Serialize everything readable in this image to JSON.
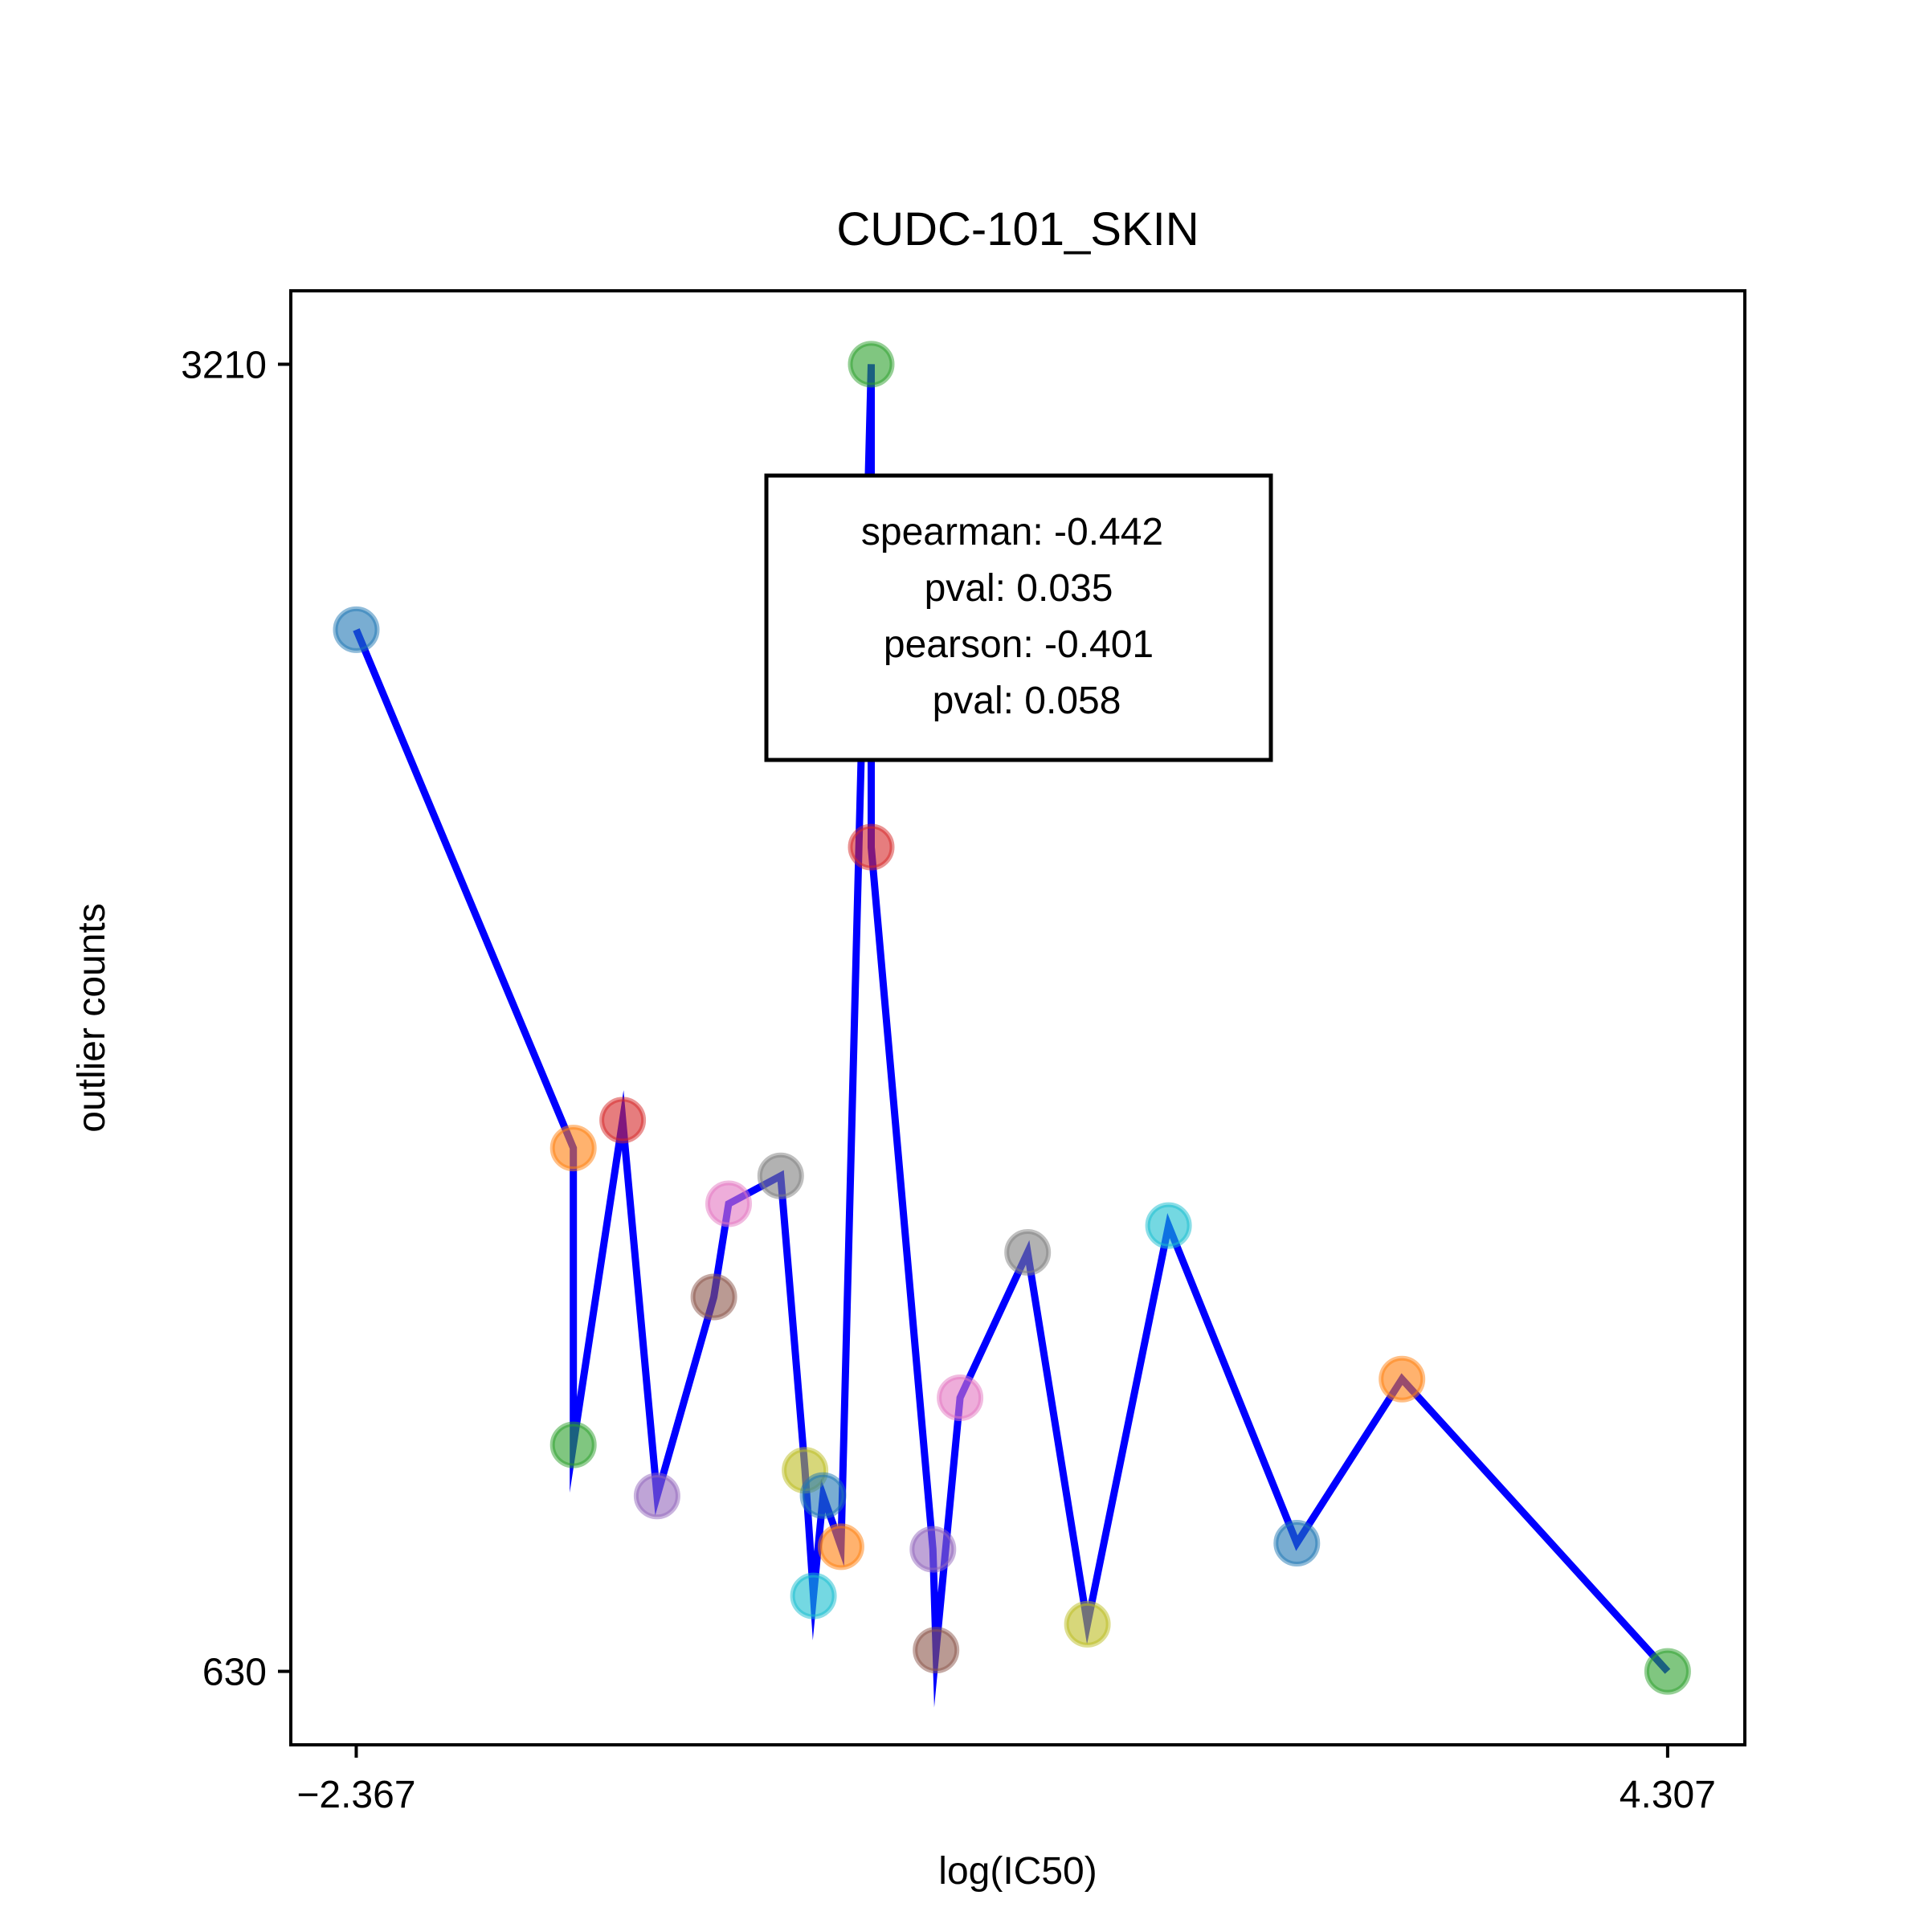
{
  "chart_data": {
    "type": "scatter",
    "title": "CUDC-101_SKIN",
    "xlabel": "log(IC50)",
    "ylabel": "outlier counts",
    "xlim": [
      -2.7,
      4.7
    ],
    "ylim": [
      485,
      3355
    ],
    "xticks": [
      -2.367,
      4.307
    ],
    "xtick_labels": [
      "−2.367",
      "4.307"
    ],
    "yticks": [
      630,
      3210
    ],
    "ytick_labels": [
      "630",
      "3210"
    ],
    "grid": false,
    "line_color": "#0000ff",
    "points": [
      {
        "x": -2.367,
        "y": 2686,
        "color": "#1f77b4"
      },
      {
        "x": -1.262,
        "y": 1663,
        "color": "#ff7f0e"
      },
      {
        "x": -1.262,
        "y": 1077,
        "color": "#2ca02c"
      },
      {
        "x": -1.011,
        "y": 1718,
        "color": "#d62728"
      },
      {
        "x": -0.836,
        "y": 976,
        "color": "#9467bd"
      },
      {
        "x": -0.547,
        "y": 1369,
        "color": "#8c564b"
      },
      {
        "x": -0.472,
        "y": 1553,
        "color": "#e377c2"
      },
      {
        "x": -0.207,
        "y": 1608,
        "color": "#7f7f7f"
      },
      {
        "x": -0.083,
        "y": 1027,
        "color": "#bcbd22"
      },
      {
        "x": -0.04,
        "y": 779,
        "color": "#17becf"
      },
      {
        "x": 0.009,
        "y": 977,
        "color": "#1f77b4"
      },
      {
        "x": 0.1,
        "y": 876,
        "color": "#ff7f0e"
      },
      {
        "x": 0.254,
        "y": 3210,
        "color": "#2ca02c"
      },
      {
        "x": 0.254,
        "y": 2257,
        "color": "#d62728"
      },
      {
        "x": 0.568,
        "y": 871,
        "color": "#9467bd"
      },
      {
        "x": 0.584,
        "y": 672,
        "color": "#8c564b"
      },
      {
        "x": 0.706,
        "y": 1170,
        "color": "#e377c2"
      },
      {
        "x": 1.05,
        "y": 1457,
        "color": "#7f7f7f"
      },
      {
        "x": 1.354,
        "y": 723,
        "color": "#bcbd22"
      },
      {
        "x": 1.767,
        "y": 1510,
        "color": "#17becf"
      },
      {
        "x": 2.42,
        "y": 883,
        "color": "#1f77b4"
      },
      {
        "x": 2.955,
        "y": 1207,
        "color": "#ff7f0e"
      },
      {
        "x": 4.307,
        "y": 630,
        "color": "#2ca02c"
      }
    ],
    "annotation": {
      "lines": [
        "spearman: -0.442",
        "pval: 0.035",
        "pearson: -0.401",
        "pval: 0.058"
      ],
      "placement": "top-center"
    }
  }
}
